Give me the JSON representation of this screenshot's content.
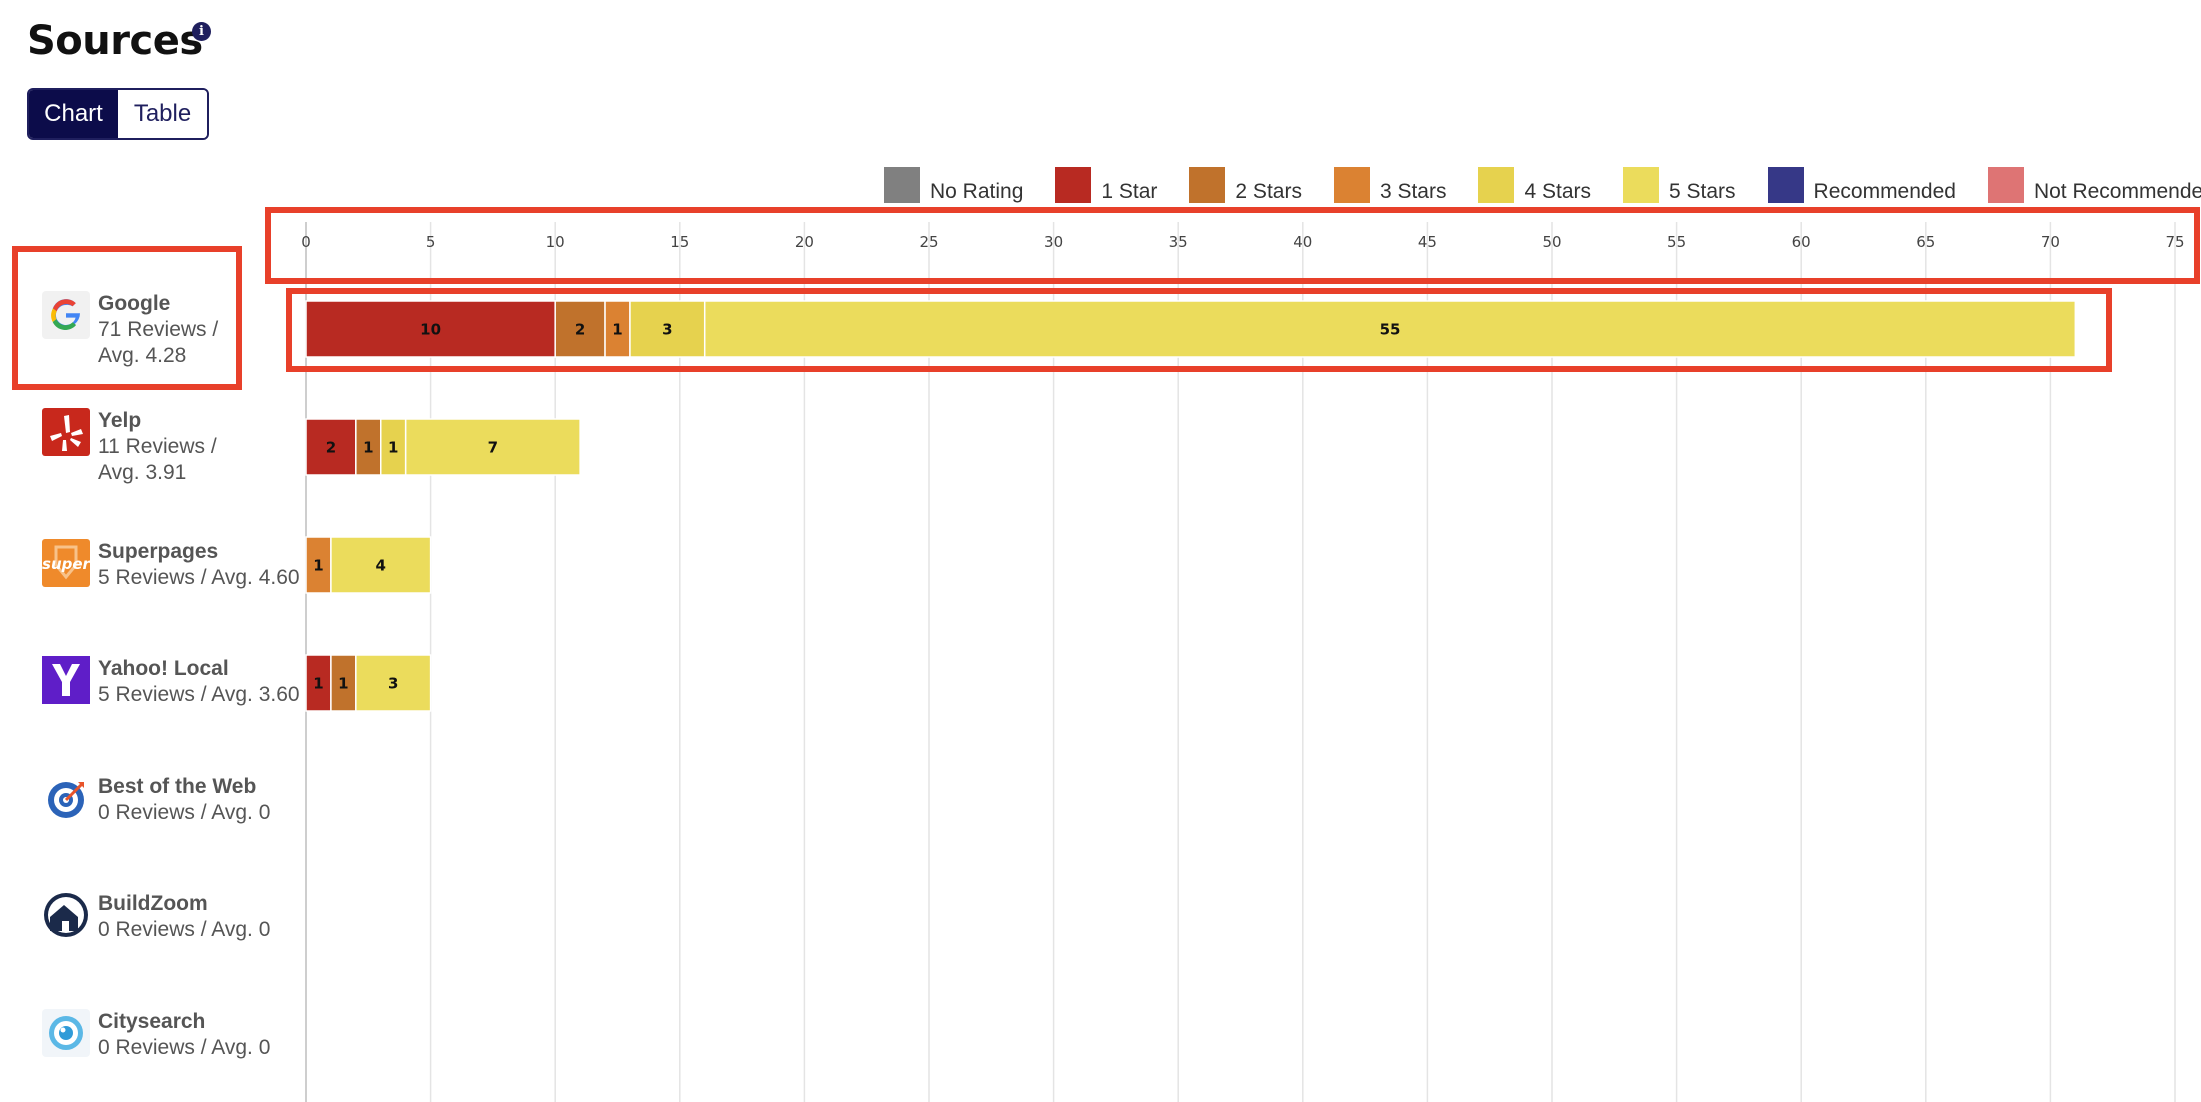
{
  "header": {
    "title": "Sources",
    "info_icon": "info-icon",
    "toggle": {
      "chart_label": "Chart",
      "table_label": "Table",
      "active": "Chart"
    }
  },
  "legend": [
    {
      "label": "No Rating",
      "color": "#808080"
    },
    {
      "label": "1 Star",
      "color": "#b82a22"
    },
    {
      "label": "2 Stars",
      "color": "#c0722c"
    },
    {
      "label": "3 Stars",
      "color": "#db8232"
    },
    {
      "label": "4 Stars",
      "color": "#e6d24e"
    },
    {
      "label": "5 Stars",
      "color": "#ebdc5c"
    },
    {
      "label": "Recommended",
      "color": "#363887"
    },
    {
      "label": "Not Recommended",
      "color": "#de7474"
    }
  ],
  "sources": [
    {
      "name": "Google",
      "line1": "71 Reviews /",
      "line2": "Avg. 4.28",
      "icon": "google-logo-icon"
    },
    {
      "name": "Yelp",
      "line1": "11 Reviews /",
      "line2": "Avg. 3.91",
      "icon": "yelp-logo-icon"
    },
    {
      "name": "Superpages",
      "line1": "5 Reviews / Avg. 4.60",
      "line2": "",
      "icon": "superpages-logo-icon"
    },
    {
      "name": "Yahoo! Local",
      "line1": "5 Reviews / Avg. 3.60",
      "line2": "",
      "icon": "yahoo-logo-icon"
    },
    {
      "name": "Best of the Web",
      "line1": "0 Reviews / Avg. 0",
      "line2": "",
      "icon": "bestoftheweb-logo-icon"
    },
    {
      "name": "BuildZoom",
      "line1": "0 Reviews / Avg. 0",
      "line2": "",
      "icon": "buildzoom-logo-icon"
    },
    {
      "name": "Citysearch",
      "line1": "0 Reviews / Avg. 0",
      "line2": "",
      "icon": "citysearch-logo-icon"
    }
  ],
  "chart_data": {
    "type": "bar",
    "orientation": "horizontal",
    "stacked": true,
    "categories": [
      "Google",
      "Yelp",
      "Superpages",
      "Yahoo! Local",
      "Best of the Web",
      "BuildZoom",
      "Citysearch"
    ],
    "series": [
      {
        "name": "No Rating",
        "values": [
          0,
          0,
          0,
          0,
          0,
          0,
          0
        ]
      },
      {
        "name": "1 Star",
        "values": [
          10,
          2,
          0,
          1,
          0,
          0,
          0
        ]
      },
      {
        "name": "2 Stars",
        "values": [
          2,
          1,
          0,
          1,
          0,
          0,
          0
        ]
      },
      {
        "name": "3 Stars",
        "values": [
          1,
          0,
          1,
          0,
          0,
          0,
          0
        ]
      },
      {
        "name": "4 Stars",
        "values": [
          3,
          1,
          0,
          0,
          0,
          0,
          0
        ]
      },
      {
        "name": "5 Stars",
        "values": [
          55,
          7,
          4,
          3,
          0,
          0,
          0
        ]
      },
      {
        "name": "Recommended",
        "values": [
          0,
          0,
          0,
          0,
          0,
          0,
          0
        ]
      },
      {
        "name": "Not Recommended",
        "values": [
          0,
          0,
          0,
          0,
          0,
          0,
          0
        ]
      }
    ],
    "xlim": [
      0,
      75
    ],
    "xticks": [
      0,
      5,
      10,
      15,
      20,
      25,
      30,
      35,
      40,
      45,
      50,
      55,
      60,
      65,
      70,
      75
    ],
    "axis_position": "top",
    "grid": true,
    "legend_position": "top-right"
  }
}
